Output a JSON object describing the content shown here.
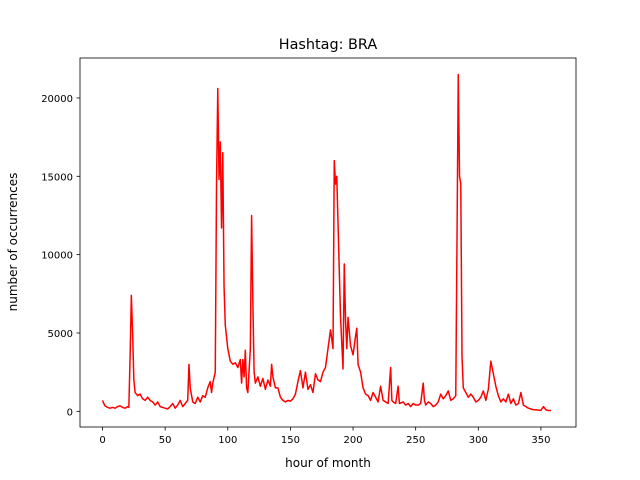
{
  "chart_data": {
    "type": "line",
    "title": "Hashtag: BRA",
    "x_label": "hour of month",
    "y_label": "number of occurrences",
    "x": [
      0,
      1,
      2,
      4,
      6,
      8,
      10,
      12,
      14,
      16,
      18,
      20,
      21,
      22,
      23,
      24,
      25,
      26,
      28,
      30,
      32,
      34,
      36,
      38,
      40,
      42,
      44,
      46,
      48,
      50,
      52,
      54,
      56,
      58,
      60,
      62,
      64,
      66,
      68,
      69,
      70,
      72,
      74,
      76,
      78,
      80,
      82,
      84,
      86,
      87,
      88,
      90,
      91,
      92,
      93,
      94,
      95,
      96,
      97,
      98,
      100,
      102,
      104,
      106,
      108,
      110,
      111,
      112,
      113,
      114,
      115,
      116,
      118,
      119,
      120,
      121,
      122,
      124,
      126,
      128,
      130,
      132,
      134,
      135,
      136,
      138,
      140,
      142,
      144,
      146,
      148,
      150,
      152,
      154,
      156,
      158,
      160,
      162,
      164,
      166,
      168,
      170,
      172,
      174,
      176,
      178,
      180,
      182,
      184,
      185,
      186,
      187,
      188,
      190,
      192,
      193,
      194,
      195,
      196,
      198,
      200,
      202,
      203,
      204,
      206,
      208,
      210,
      212,
      214,
      216,
      218,
      220,
      222,
      224,
      226,
      228,
      230,
      231,
      232,
      234,
      236,
      237,
      240,
      242,
      244,
      246,
      248,
      250,
      252,
      254,
      256,
      257,
      258,
      260,
      262,
      264,
      266,
      268,
      270,
      272,
      274,
      276,
      278,
      280,
      282,
      283,
      284,
      285,
      286,
      287,
      288,
      290,
      292,
      294,
      296,
      298,
      300,
      302,
      304,
      306,
      308,
      310,
      312,
      314,
      316,
      318,
      320,
      322,
      324,
      326,
      328,
      330,
      332,
      334,
      336,
      338,
      340,
      342,
      344,
      346,
      348,
      350,
      352,
      354,
      356,
      358
    ],
    "series": [
      {
        "color": "#ff0000",
        "values": [
          700,
          500,
          350,
          250,
          200,
          250,
          200,
          300,
          350,
          250,
          200,
          300,
          250,
          3500,
          7400,
          5000,
          2000,
          1200,
          1000,
          1100,
          800,
          700,
          900,
          700,
          600,
          400,
          600,
          300,
          250,
          200,
          150,
          300,
          500,
          200,
          400,
          700,
          300,
          500,
          700,
          3000,
          1500,
          600,
          500,
          900,
          600,
          1000,
          900,
          1500,
          1900,
          1200,
          1800,
          2500,
          14500,
          20600,
          14800,
          17200,
          11700,
          16500,
          8000,
          5500,
          4000,
          3200,
          3000,
          3100,
          2800,
          3300,
          1800,
          3300,
          2200,
          3900,
          1500,
          1200,
          4000,
          12500,
          7000,
          2500,
          1800,
          2200,
          1600,
          2100,
          1400,
          2000,
          1600,
          3000,
          2200,
          1500,
          1500,
          900,
          700,
          600,
          700,
          650,
          800,
          1100,
          1900,
          2600,
          1500,
          2500,
          1400,
          1700,
          1200,
          2400,
          2000,
          1900,
          2500,
          2800,
          4000,
          5200,
          4000,
          16000,
          14500,
          15000,
          12000,
          6000,
          2700,
          9400,
          5800,
          4000,
          6000,
          4200,
          3600,
          4800,
          5300,
          3000,
          2500,
          1500,
          1100,
          1000,
          700,
          1200,
          900,
          600,
          1600,
          700,
          600,
          500,
          2800,
          700,
          600,
          500,
          1600,
          500,
          600,
          400,
          500,
          300,
          500,
          400,
          400,
          500,
          1800,
          700,
          400,
          600,
          500,
          300,
          400,
          600,
          1100,
          800,
          1000,
          1300,
          700,
          800,
          1000,
          11000,
          21500,
          15000,
          14500,
          3500,
          1500,
          1200,
          900,
          1100,
          900,
          600,
          700,
          900,
          1300,
          700,
          1400,
          3200,
          2400,
          1600,
          1000,
          600,
          800,
          600,
          1100,
          500,
          800,
          400,
          500,
          1200,
          400,
          300,
          200,
          150,
          100,
          100,
          80,
          60,
          300,
          100,
          50,
          50
        ]
      }
    ],
    "xlim": [
      -18,
      378
    ],
    "ylim": [
      -1000,
      22550
    ],
    "xticks": [
      0,
      50,
      100,
      150,
      200,
      250,
      300,
      350
    ],
    "yticks": [
      0,
      5000,
      10000,
      15000,
      20000
    ]
  }
}
